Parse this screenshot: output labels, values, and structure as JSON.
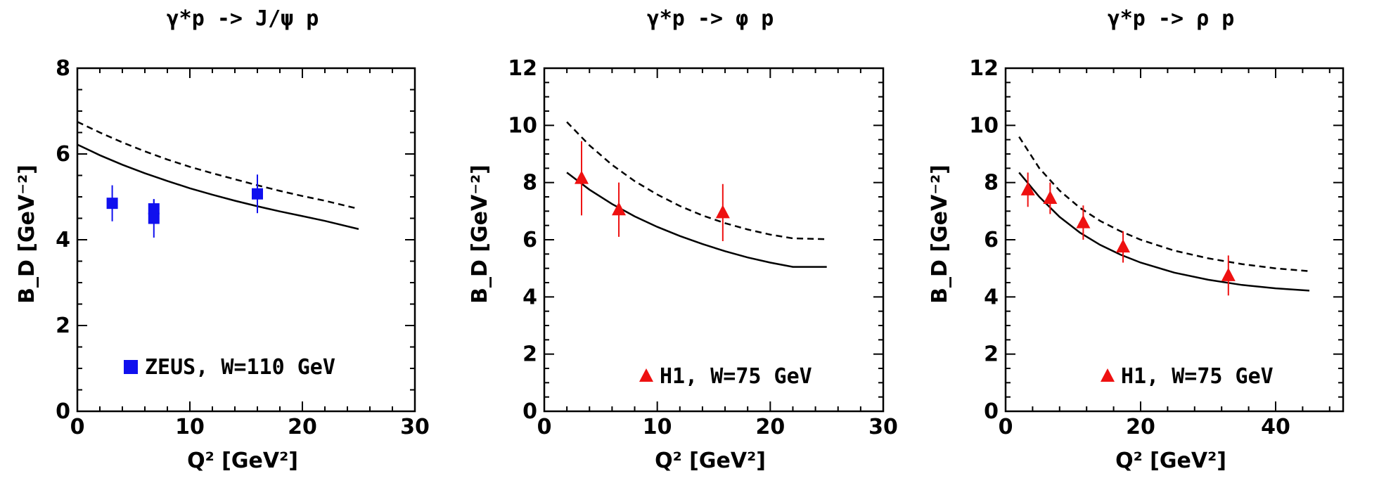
{
  "colors": {
    "zeus": "#1010ee",
    "h1": "#ee1111",
    "axis": "#000000"
  },
  "chart_data": [
    {
      "type": "scatter",
      "title": "γ*p -> J/ψ p",
      "xlabel": "Q² [GeV²]",
      "ylabel": "B_D [GeV⁻²]",
      "xlim": [
        0,
        30
      ],
      "ylim": [
        0,
        8
      ],
      "xticks": [
        0,
        10,
        20,
        30
      ],
      "yticks": [
        0,
        2,
        4,
        6,
        8
      ],
      "x_major": 10,
      "x_minor": 2,
      "y_major": 2,
      "y_minor": 0.5,
      "legend": {
        "label": "ZEUS, W=110 GeV",
        "marker": "square",
        "color": "#1010ee",
        "position": "bottom-right"
      },
      "points": [
        {
          "x": 3.1,
          "y": 4.85,
          "err": 0.42
        },
        {
          "x": 6.8,
          "y": 4.72,
          "err": 0.22
        },
        {
          "x": 6.8,
          "y": 4.5,
          "err": 0.45
        },
        {
          "x": 16.0,
          "y": 5.07,
          "err": 0.45
        }
      ],
      "series": [
        {
          "name": "solid",
          "style": "solid",
          "x": [
            0,
            2,
            4,
            6,
            8,
            10,
            12,
            14,
            16,
            18,
            20,
            22,
            25
          ],
          "y": [
            6.22,
            5.97,
            5.75,
            5.55,
            5.37,
            5.2,
            5.05,
            4.91,
            4.78,
            4.66,
            4.55,
            4.44,
            4.25
          ]
        },
        {
          "name": "dashed",
          "style": "dashed",
          "x": [
            0,
            2,
            4,
            6,
            8,
            10,
            12,
            14,
            16,
            18,
            20,
            22,
            25
          ],
          "y": [
            6.75,
            6.5,
            6.27,
            6.06,
            5.87,
            5.7,
            5.55,
            5.41,
            5.27,
            5.14,
            5.02,
            4.91,
            4.72
          ]
        }
      ]
    },
    {
      "type": "scatter",
      "title": "γ*p -> φ p",
      "xlabel": "Q² [GeV²]",
      "ylabel": "B_D [GeV⁻²]",
      "xlim": [
        0,
        30
      ],
      "ylim": [
        0,
        12
      ],
      "xticks": [
        0,
        10,
        20,
        30
      ],
      "yticks": [
        0,
        2,
        4,
        6,
        8,
        10,
        12
      ],
      "x_major": 10,
      "x_minor": 2,
      "y_major": 2,
      "y_minor": 0.5,
      "legend": {
        "label": "H1, W=75 GeV",
        "marker": "triangle",
        "color": "#ee1111",
        "position": "bottom-right"
      },
      "points": [
        {
          "x": 3.3,
          "y": 8.15,
          "err": 1.3
        },
        {
          "x": 6.6,
          "y": 7.05,
          "err": 0.95
        },
        {
          "x": 15.8,
          "y": 6.95,
          "err": 1.0
        }
      ],
      "series": [
        {
          "name": "solid",
          "style": "solid",
          "x": [
            2,
            4,
            6,
            8,
            10,
            12,
            14,
            16,
            18,
            20,
            22,
            25
          ],
          "y": [
            8.35,
            7.75,
            7.25,
            6.82,
            6.45,
            6.13,
            5.85,
            5.6,
            5.38,
            5.2,
            5.05,
            5.05
          ]
        },
        {
          "name": "dashed",
          "style": "dashed",
          "x": [
            2,
            4,
            6,
            8,
            10,
            12,
            14,
            16,
            18,
            20,
            22,
            25
          ],
          "y": [
            10.12,
            9.3,
            8.62,
            8.05,
            7.58,
            7.18,
            6.85,
            6.58,
            6.36,
            6.18,
            6.05,
            6.02
          ]
        }
      ]
    },
    {
      "type": "scatter",
      "title": "γ*p -> ρ p",
      "xlabel": "Q² [GeV²]",
      "ylabel": "B_D [GeV⁻²]",
      "xlim": [
        0,
        50
      ],
      "ylim": [
        0,
        12
      ],
      "xticks": [
        0,
        20,
        40
      ],
      "yticks": [
        0,
        2,
        4,
        6,
        8,
        10,
        12
      ],
      "x_major": 20,
      "x_minor": 4,
      "y_major": 2,
      "y_minor": 0.5,
      "legend": {
        "label": "H1, W=75 GeV",
        "marker": "triangle",
        "color": "#ee1111",
        "position": "bottom-right"
      },
      "points": [
        {
          "x": 3.3,
          "y": 7.75,
          "err": 0.6
        },
        {
          "x": 6.6,
          "y": 7.45,
          "err": 0.55
        },
        {
          "x": 11.5,
          "y": 6.6,
          "err": 0.6
        },
        {
          "x": 17.4,
          "y": 5.75,
          "err": 0.55
        },
        {
          "x": 33.0,
          "y": 4.75,
          "err": 0.7
        }
      ],
      "series": [
        {
          "name": "solid",
          "style": "solid",
          "x": [
            2,
            5,
            8,
            11,
            14,
            17,
            20,
            25,
            30,
            35,
            40,
            45
          ],
          "y": [
            8.35,
            7.5,
            6.8,
            6.25,
            5.82,
            5.48,
            5.2,
            4.85,
            4.6,
            4.42,
            4.3,
            4.22
          ]
        },
        {
          "name": "dashed",
          "style": "dashed",
          "x": [
            2,
            5,
            8,
            11,
            14,
            17,
            20,
            25,
            30,
            35,
            40,
            45
          ],
          "y": [
            9.6,
            8.5,
            7.72,
            7.12,
            6.66,
            6.3,
            6.0,
            5.62,
            5.35,
            5.15,
            5.0,
            4.9
          ]
        }
      ]
    }
  ]
}
